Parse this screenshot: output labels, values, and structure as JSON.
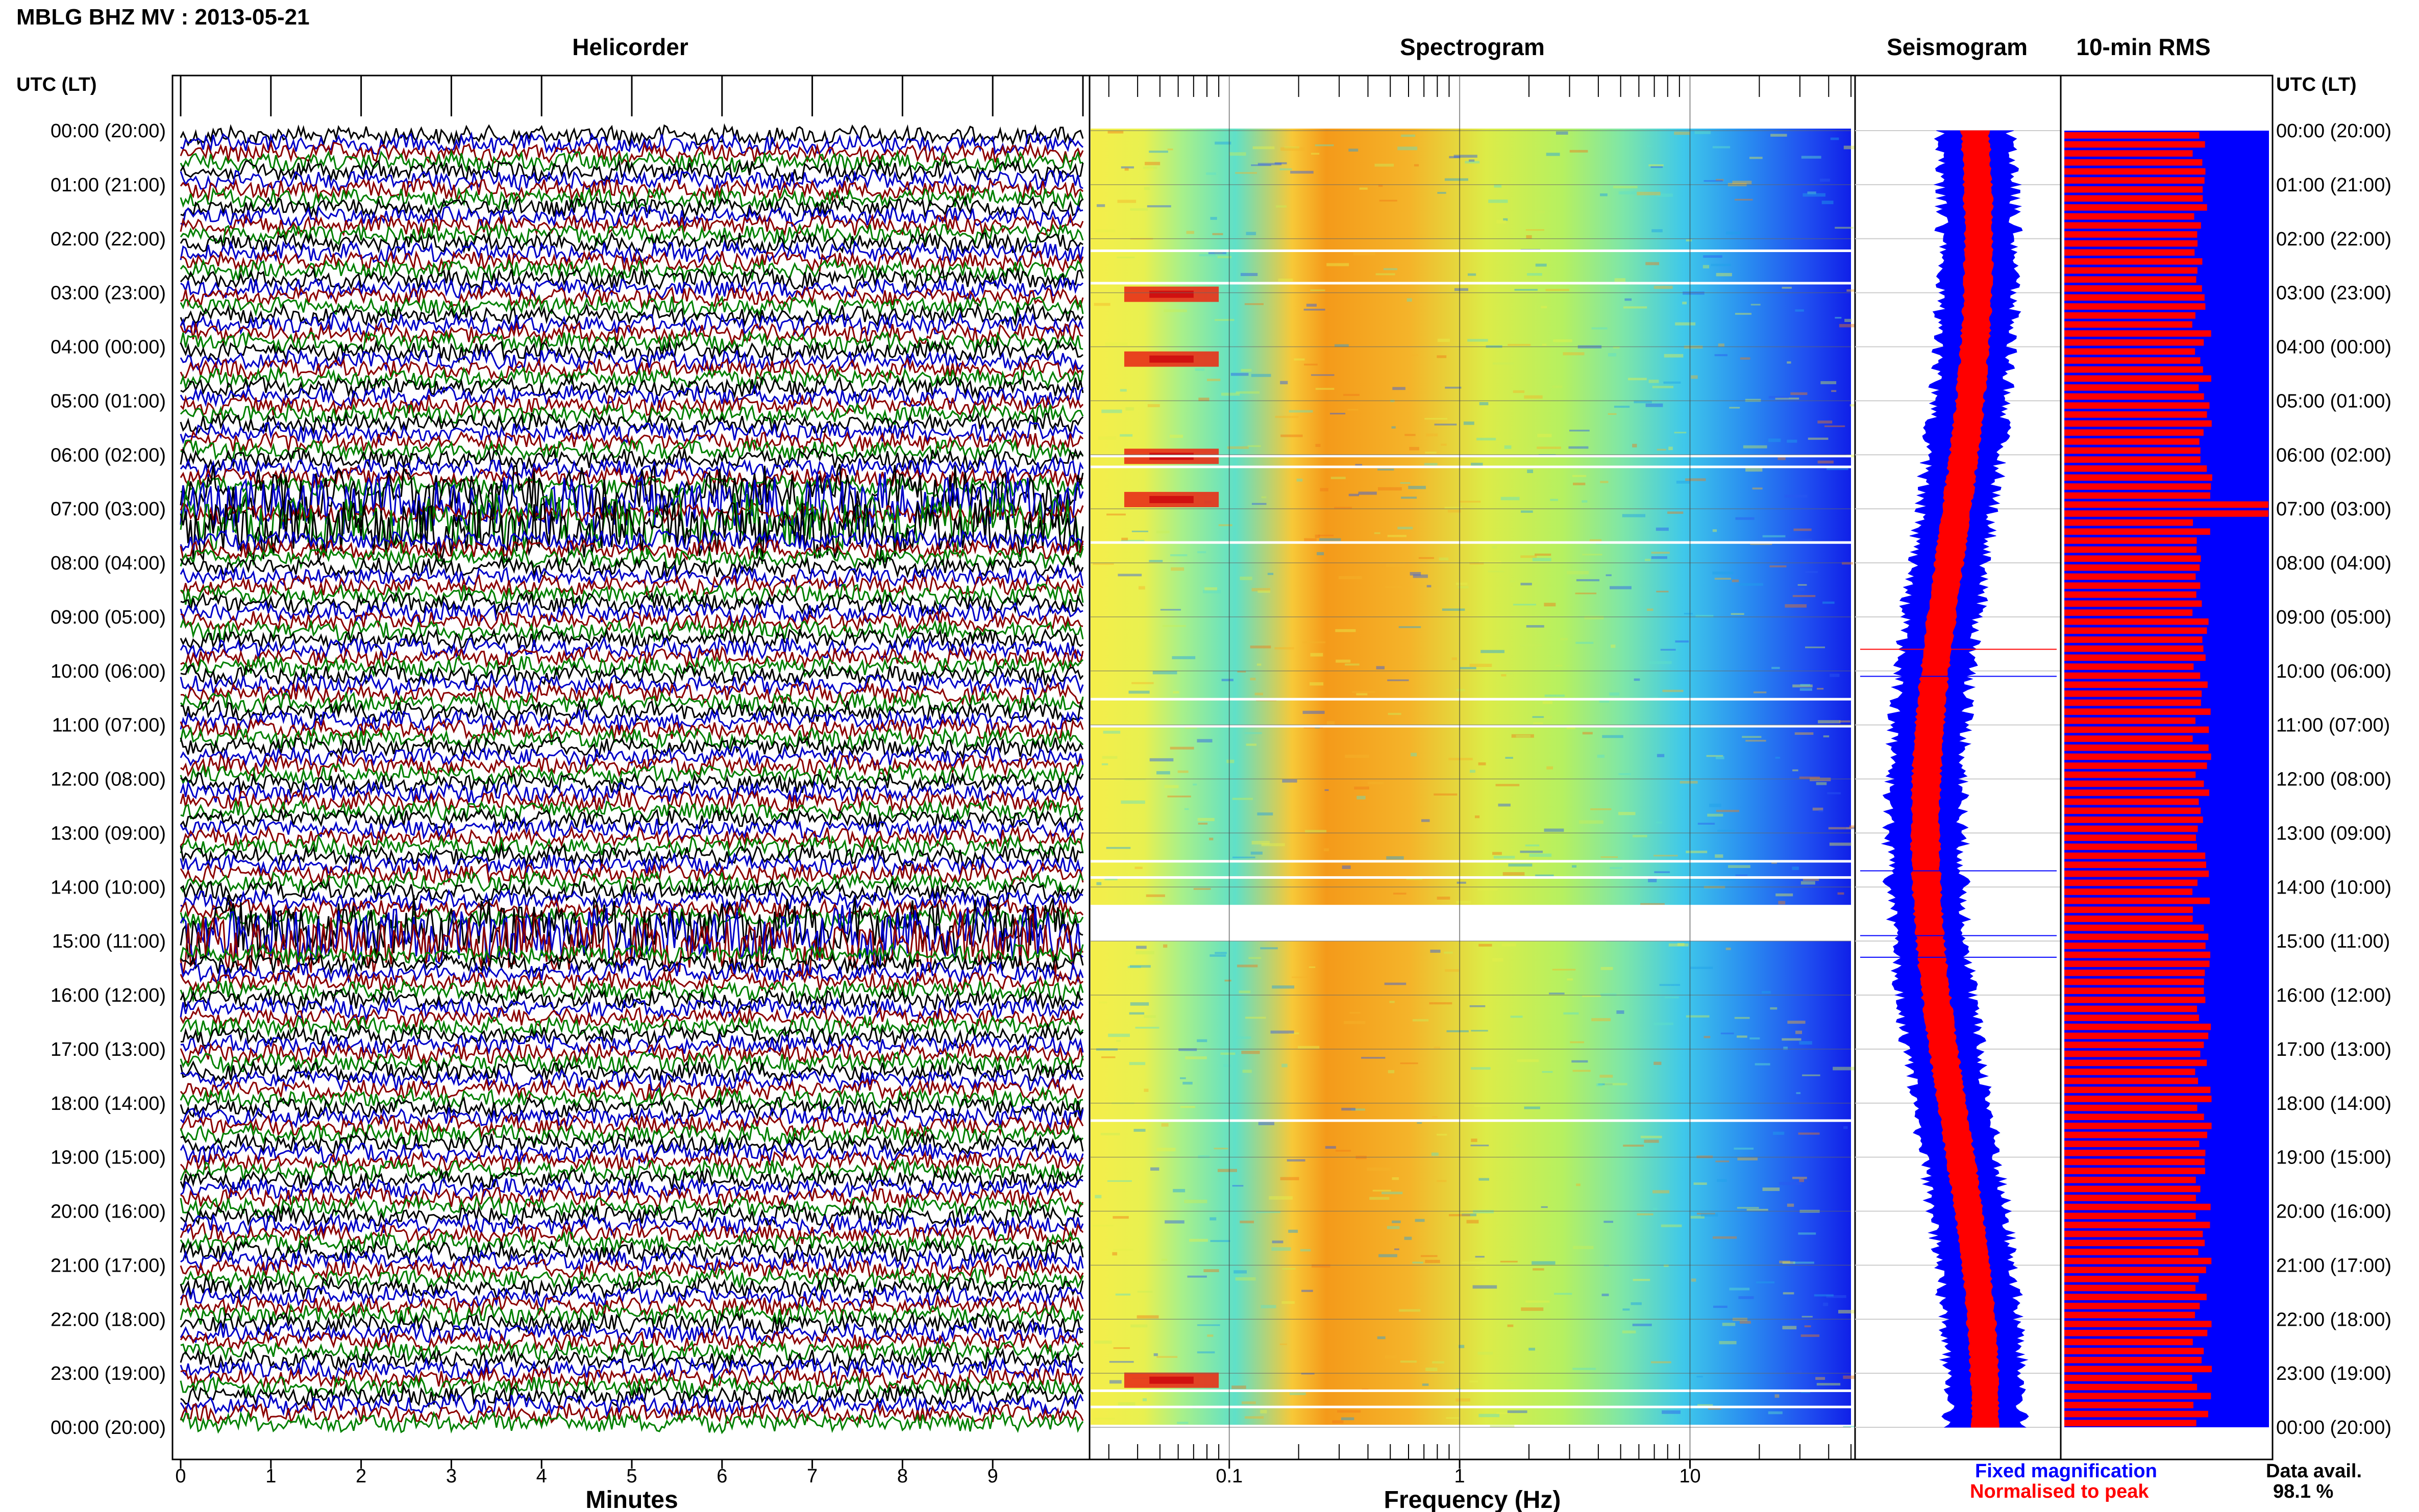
{
  "title": "MBLG BHZ MV : 2013-05-21",
  "panels": {
    "helicorder": "Helicorder",
    "spectrogram": "Spectrogram",
    "seismogram": "Seismogram",
    "rms": "10-min RMS"
  },
  "utc_label": "UTC (LT)",
  "time_labels": [
    "00:00 (20:00)",
    "01:00 (21:00)",
    "02:00 (22:00)",
    "03:00 (23:00)",
    "04:00 (00:00)",
    "05:00 (01:00)",
    "06:00 (02:00)",
    "07:00 (03:00)",
    "08:00 (04:00)",
    "09:00 (05:00)",
    "10:00 (06:00)",
    "11:00 (07:00)",
    "12:00 (08:00)",
    "13:00 (09:00)",
    "14:00 (10:00)",
    "15:00 (11:00)",
    "16:00 (12:00)",
    "17:00 (13:00)",
    "18:00 (14:00)",
    "19:00 (15:00)",
    "20:00 (16:00)",
    "21:00 (17:00)",
    "22:00 (18:00)",
    "23:00 (19:00)",
    "00:00 (20:00)"
  ],
  "x_axes": {
    "minutes": {
      "label": "Minutes",
      "ticks": [
        "0",
        "1",
        "2",
        "3",
        "4",
        "5",
        "6",
        "7",
        "8",
        "9"
      ]
    },
    "frequency": {
      "label": "Frequency (Hz)",
      "ticks": [
        "0.1",
        "1",
        "10"
      ],
      "scale": "log",
      "range": [
        0.025,
        50
      ]
    }
  },
  "legend": {
    "fixed": "Fixed magnification",
    "normalised": "Normalised to peak",
    "colors": {
      "fixed": "#0000ff",
      "normalised": "#ff0000"
    }
  },
  "data_avail": {
    "label": "Data avail.",
    "value": "98.1 %"
  },
  "colors": {
    "trace": [
      "#000000",
      "#0000c8",
      "#8b0000",
      "#008000"
    ],
    "rms_fill": "#0000ff",
    "rms_bar": "#ff0000"
  },
  "chart_data": [
    {
      "type": "line",
      "name": "helicorder",
      "title": "Helicorder",
      "xlabel": "Minutes",
      "xlim": [
        0,
        10
      ],
      "rows": 144,
      "row_minutes": 10,
      "hours": 24,
      "noisy_rows": [
        40,
        41,
        43,
        44,
        88,
        89,
        90
      ]
    },
    {
      "type": "heatmap",
      "name": "spectrogram",
      "title": "Spectrogram",
      "xlabel": "Frequency (Hz)",
      "xscale": "log",
      "xlim": [
        0.025,
        50
      ],
      "gap_hours": [
        [
          14.33,
          15.0
        ]
      ],
      "strong_low_freq_hours": [
        3.0,
        4.2,
        6.0,
        6.8,
        23.1
      ]
    },
    {
      "type": "line",
      "name": "seismogram",
      "title": "Seismogram",
      "series": [
        {
          "name": "Fixed magnification"
        },
        {
          "name": "Normalised to peak"
        }
      ]
    },
    {
      "type": "bar",
      "name": "rms",
      "title": "10-min RMS",
      "bars": 144,
      "peak_hour": 6.9
    }
  ]
}
